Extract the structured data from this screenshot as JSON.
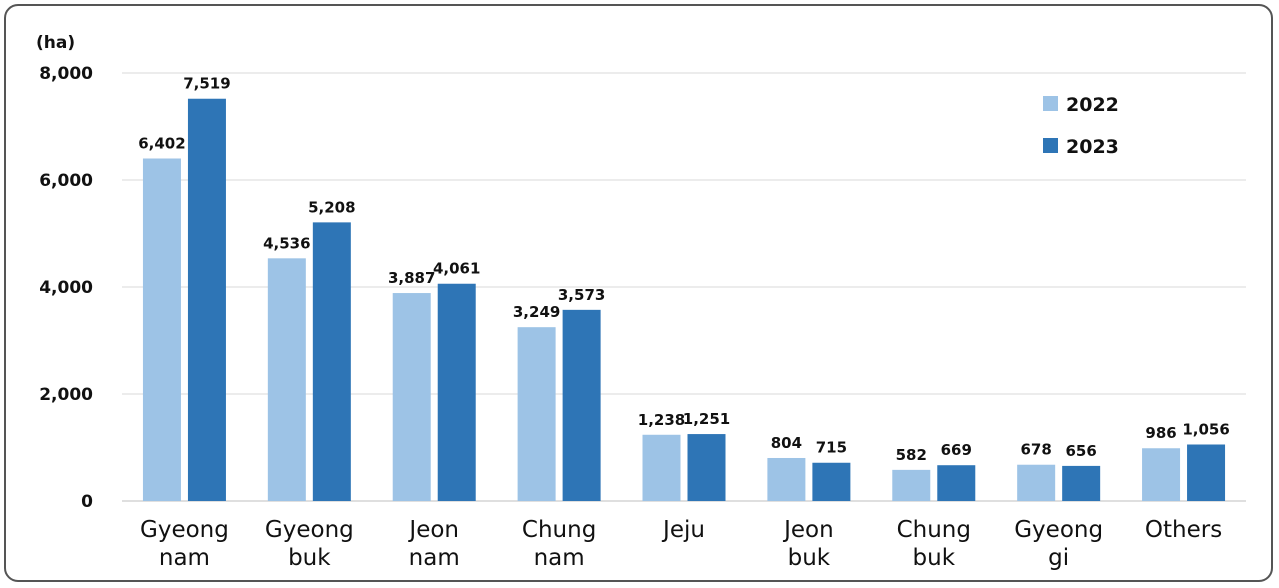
{
  "chart_data": {
    "type": "bar",
    "unit_label": "(ha)",
    "categories": [
      [
        "Gyeong",
        "nam"
      ],
      [
        "Gyeong",
        "buk"
      ],
      [
        "Jeon",
        "nam"
      ],
      [
        "Chung",
        "nam"
      ],
      [
        "Jeju"
      ],
      [
        "Jeon",
        "buk"
      ],
      [
        "Chung",
        "buk"
      ],
      [
        "Gyeong",
        "gi"
      ],
      [
        "Others"
      ]
    ],
    "series": [
      {
        "name": "2022",
        "color": "#9DC3E6",
        "values": [
          6402,
          4536,
          3887,
          3249,
          1238,
          804,
          582,
          678,
          986
        ],
        "labels": [
          "6,402",
          "4,536",
          "3,887",
          "3,249",
          "1,238",
          "804",
          "582",
          "678",
          "986"
        ]
      },
      {
        "name": "2023",
        "color": "#2E75B6",
        "values": [
          7519,
          5208,
          4061,
          3573,
          1251,
          715,
          669,
          656,
          1056
        ],
        "labels": [
          "7,519",
          "5,208",
          "4,061",
          "3,573",
          "1,251",
          "715",
          "669",
          "656",
          "1,056"
        ]
      }
    ],
    "ylim": [
      0,
      8000
    ],
    "yticks": [
      0,
      2000,
      4000,
      6000,
      8000
    ],
    "ytick_labels": [
      "0",
      "2,000",
      "4,000",
      "6,000",
      "8,000"
    ],
    "grid": true,
    "legend_position": "top-right"
  }
}
